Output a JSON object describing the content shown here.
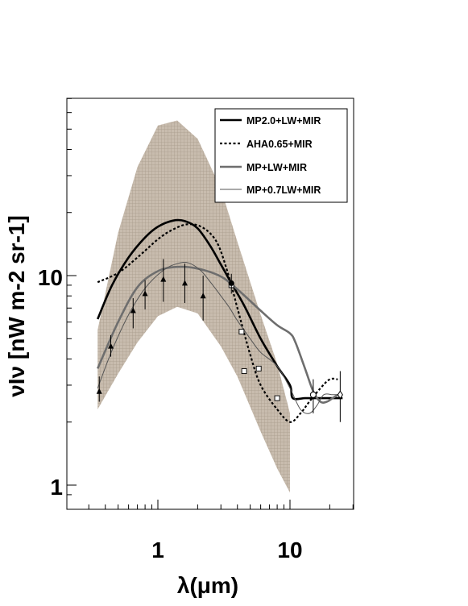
{
  "chart_data": {
    "type": "line",
    "x_scale": "log",
    "y_scale": "log",
    "xlim": [
      0.2,
      40
    ],
    "ylim": [
      0.8,
      80
    ],
    "xlabel": "λ(μm)",
    "ylabel": "νIν [nW m-2 sr-1]",
    "x_tick_labels": [
      {
        "value": 1,
        "label": "1"
      },
      {
        "value": 10,
        "label": "10"
      }
    ],
    "y_tick_labels": [
      {
        "value": 1,
        "label": "1"
      },
      {
        "value": 10,
        "label": "10"
      }
    ],
    "legend": {
      "position": "top-right",
      "entries": [
        "MP2.0+LW+MIR",
        "AHA0.65+MIR",
        "MP+LW+MIR",
        "MP+0.7LW+MIR"
      ]
    },
    "colors": {
      "band": "#c8bcae",
      "dark": "#000000",
      "gray": "#6e6e6e"
    },
    "band": {
      "x": [
        0.35,
        0.5,
        0.7,
        1.0,
        1.4,
        2.0,
        3.0,
        4.0,
        6.0,
        8.0,
        10.0
      ],
      "upper": [
        5.5,
        16,
        33,
        52,
        55,
        45,
        26,
        14.5,
        6.5,
        3.8,
        2.2
      ],
      "lower": [
        2.3,
        3.4,
        4.8,
        6.4,
        7.1,
        6.6,
        4.6,
        3.3,
        1.8,
        1.2,
        0.92
      ]
    },
    "series": [
      {
        "name": "MP2.0+LW+MIR",
        "style": "solid-thick",
        "x": [
          0.35,
          0.45,
          0.6,
          0.8,
          1.0,
          1.3,
          1.6,
          2.0,
          2.5,
          3.0,
          3.6,
          4.5,
          6.0,
          8.0,
          10.0,
          10.5,
          13,
          16,
          20,
          25
        ],
        "y": [
          6.2,
          9.0,
          12.2,
          15.2,
          17.1,
          18.3,
          18.2,
          16.8,
          13.8,
          11.3,
          9.2,
          7.2,
          5.0,
          3.7,
          3.0,
          2.6,
          2.6,
          2.6,
          2.6,
          2.6
        ]
      },
      {
        "name": "AHA0.65+MIR",
        "style": "dotted",
        "x": [
          0.35,
          0.5,
          0.7,
          1.0,
          1.3,
          1.7,
          2.2,
          2.8,
          3.4,
          4.0,
          5.0,
          6.0,
          8.0,
          10.0,
          12.0,
          14.0,
          17.0,
          20.0,
          23.0
        ],
        "y": [
          9.3,
          10.3,
          12.2,
          14.9,
          16.6,
          17.6,
          16.9,
          14.4,
          10.2,
          7.0,
          4.2,
          3.0,
          2.3,
          2.0,
          2.2,
          2.5,
          2.9,
          3.2,
          3.2
        ]
      },
      {
        "name": "MP+LW+MIR",
        "style": "gray-thick",
        "x": [
          0.35,
          0.5,
          0.7,
          1.0,
          1.4,
          2.0,
          3.0,
          4.0,
          6.0,
          8.0,
          10.0,
          11.0,
          13.0,
          15.0,
          17.0,
          19.0,
          21.0,
          23.0
        ],
        "y": [
          3.6,
          6.0,
          8.8,
          10.5,
          11.0,
          10.8,
          9.9,
          8.6,
          6.8,
          5.8,
          5.3,
          4.8,
          3.6,
          2.8,
          2.5,
          2.5,
          2.6,
          2.7
        ]
      },
      {
        "name": "MP+0.7LW+MIR",
        "style": "thin",
        "x": [
          0.35,
          0.45,
          0.6,
          0.8,
          1.1,
          1.4,
          1.7,
          2.1,
          2.5,
          3.0,
          3.5,
          4.0,
          5.0,
          6.0,
          8.0,
          10.0,
          12.0,
          14.0,
          16.0,
          18.0,
          21.0,
          23.0
        ],
        "y": [
          2.9,
          4.4,
          6.5,
          8.7,
          10.6,
          11.4,
          11.5,
          10.6,
          9.3,
          8.0,
          7.0,
          6.1,
          5.0,
          4.3,
          3.7,
          2.9,
          2.3,
          2.2,
          2.4,
          2.7,
          2.7,
          2.7
        ]
      }
    ],
    "measurements": {
      "triangles": [
        {
          "x": 0.36,
          "y": 2.8,
          "ylo": 2.5,
          "yhi": 3.3
        },
        {
          "x": 0.44,
          "y": 4.6,
          "ylo": 4.1,
          "yhi": 5.2
        },
        {
          "x": 0.65,
          "y": 6.8,
          "ylo": 5.6,
          "yhi": 7.8
        },
        {
          "x": 0.8,
          "y": 8.2,
          "ylo": 6.9,
          "yhi": 9.5
        },
        {
          "x": 1.1,
          "y": 9.6,
          "ylo": 7.5,
          "yhi": 12.0
        },
        {
          "x": 1.6,
          "y": 9.2,
          "ylo": 7.4,
          "yhi": 11.4
        },
        {
          "x": 2.2,
          "y": 8.0,
          "ylo": 6.1,
          "yhi": 10.0
        }
      ],
      "squares": [
        {
          "x": 3.6,
          "y": 9.0
        },
        {
          "x": 4.3,
          "y": 5.4
        },
        {
          "x": 4.5,
          "y": 3.5
        },
        {
          "x": 5.8,
          "y": 3.6
        },
        {
          "x": 8.0,
          "y": 2.6
        }
      ],
      "filled_circles": [
        {
          "x": 3.6,
          "y": 9.2,
          "ylo": 8.2,
          "yhi": 10.2
        }
      ],
      "open_circles": [
        {
          "x": 15.0,
          "y": 2.7,
          "ylo": 2.2,
          "yhi": 3.2
        }
      ],
      "diamonds": [
        {
          "x": 24.0,
          "y": 2.7,
          "ylo": 2.0,
          "yhi": 3.5
        }
      ]
    }
  }
}
